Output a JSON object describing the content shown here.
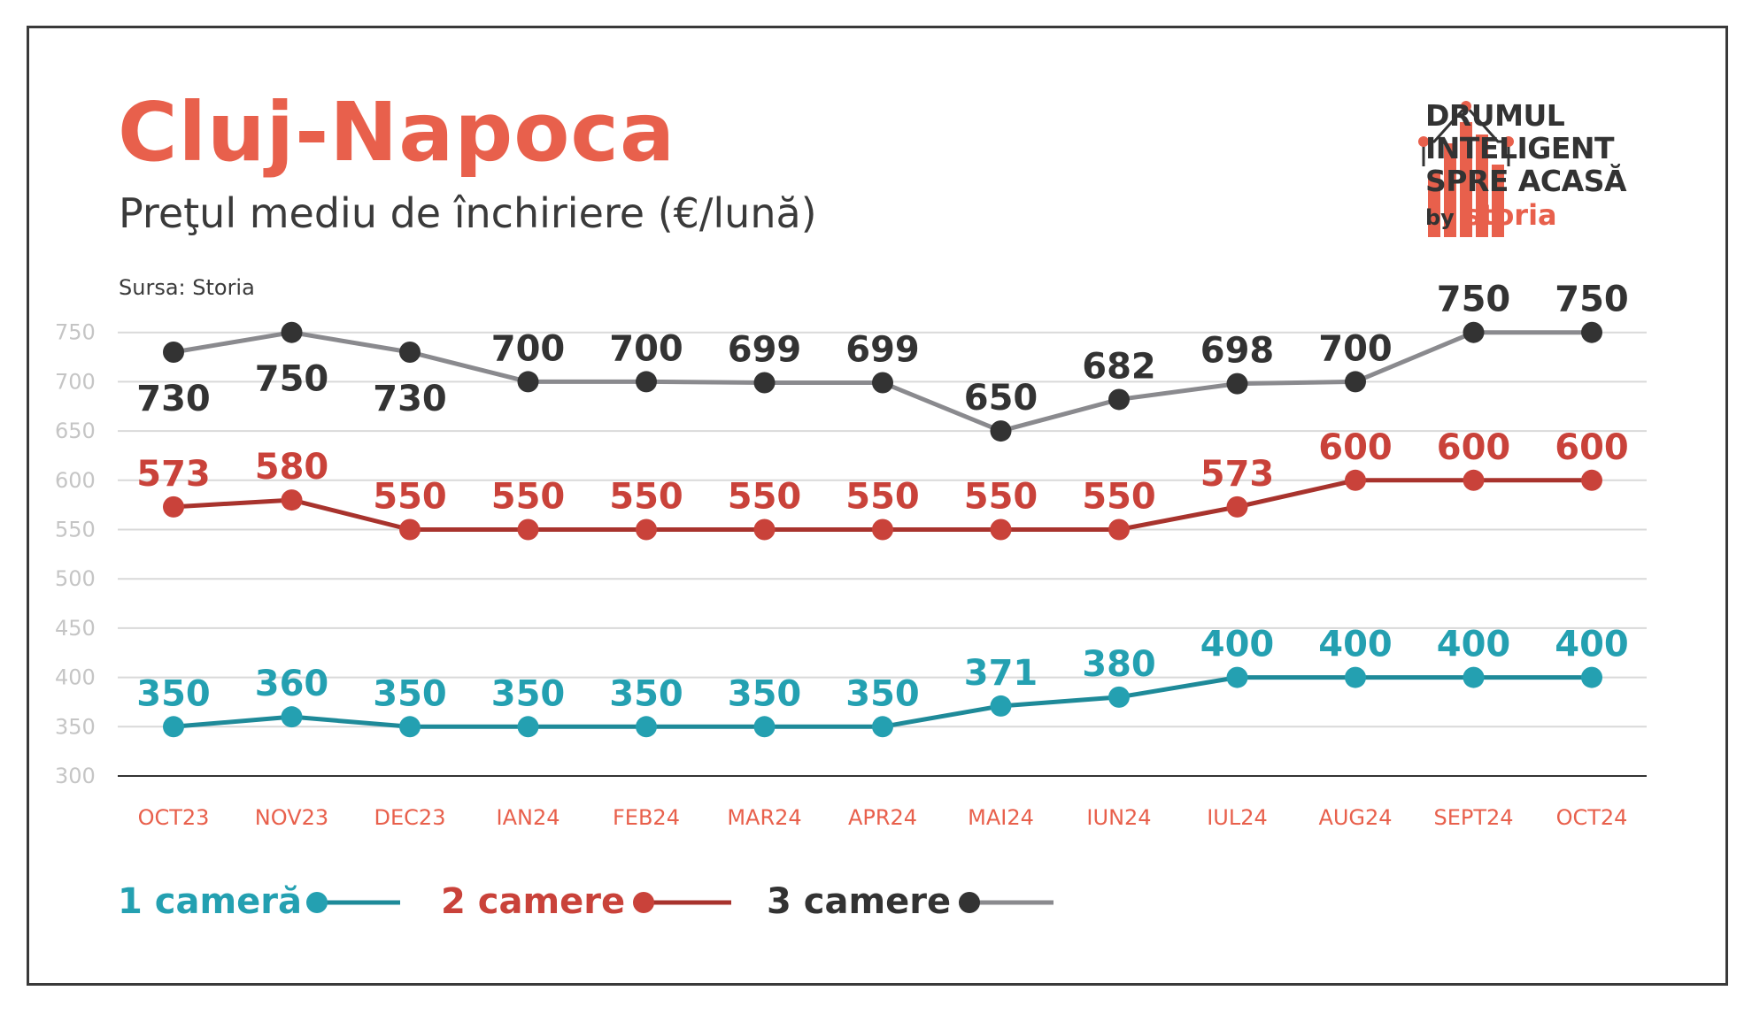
{
  "header": {
    "title": "Cluj-Napoca",
    "subtitle": "Preţul mediu de închiriere (€/lună)",
    "source": "Sursa: Storia"
  },
  "logo": {
    "line1": "DRUMUL",
    "line2": "INTELIGENT",
    "line3": "SPRE ACASĂ",
    "by": "by",
    "brand": "storia"
  },
  "colors": {
    "accent": "#e8604c",
    "text": "#333333",
    "one_room": "#24a0b1",
    "two_rooms": "#c9423a",
    "three_rooms": "#333333",
    "three_rooms_line": "#8a8a8e",
    "grid": "#d9d9d9"
  },
  "chart_data": {
    "type": "line",
    "categories": [
      "OCT23",
      "NOV23",
      "DEC23",
      "IAN24",
      "FEB24",
      "MAR24",
      "APR24",
      "MAI24",
      "IUN24",
      "IUL24",
      "AUG24",
      "SEPT24",
      "OCT24"
    ],
    "ylim": [
      300,
      750
    ],
    "yticks": [
      300,
      350,
      400,
      450,
      500,
      550,
      600,
      650,
      700,
      750
    ],
    "grid": true,
    "legend_position": "bottom-left",
    "series": [
      {
        "name": "1 cameră",
        "color": "#24a0b1",
        "line_color": "#1e8a99",
        "values": [
          350,
          360,
          350,
          350,
          350,
          350,
          350,
          371,
          380,
          400,
          400,
          400,
          400
        ],
        "label_position": "above"
      },
      {
        "name": "2 camere",
        "color": "#c9423a",
        "line_color": "#a8332d",
        "values": [
          573,
          580,
          550,
          550,
          550,
          550,
          550,
          550,
          550,
          573,
          600,
          600,
          600
        ],
        "label_position": "above"
      },
      {
        "name": "3 camere",
        "color": "#333333",
        "line_color": "#8a8a8e",
        "values": [
          730,
          750,
          730,
          700,
          700,
          699,
          699,
          650,
          682,
          698,
          700,
          750,
          750
        ],
        "label_position": [
          "below",
          "below",
          "below",
          "above",
          "above",
          "above",
          "above",
          "above",
          "above",
          "above",
          "above",
          "above",
          "above"
        ]
      }
    ]
  }
}
